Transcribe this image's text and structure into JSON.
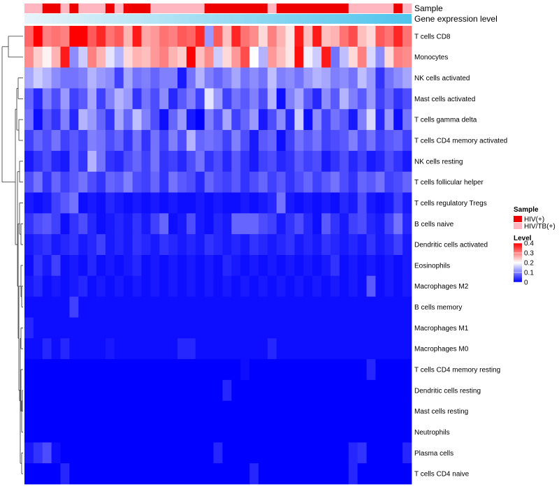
{
  "chart_data": {
    "type": "heatmap",
    "title": "",
    "annotation_rows": [
      "Sample",
      "Gene expression level"
    ],
    "row_labels": [
      "T cells CD8",
      "Monocytes",
      "NK cells activated",
      "Mast cells activated",
      "T cells gamma delta",
      "T cells CD4 memory activated",
      "NK cells resting",
      "T cells follicular helper",
      "T cells regulatory  Tregs",
      "B cells naive",
      "Dendritic cells activated",
      "Eosinophils",
      "Macrophages M2",
      "B cells memory",
      "Macrophages M1",
      "Macrophages M0",
      "T cells CD4 memory resting",
      "Dendritic cells resting",
      "Mast cells resting",
      "Neutrophils",
      "Plasma cells",
      "T cells CD4 naive"
    ],
    "sample_groups": [
      "HIV/TB(+)",
      "HIV/TB(+)",
      "HIV(+)",
      "HIV(+)",
      "HIV/TB(+)",
      "HIV(+)",
      "HIV/TB(+)",
      "HIV/TB(+)",
      "HIV/TB(+)",
      "HIV(+)",
      "HIV/TB(+)",
      "HIV(+)",
      "HIV(+)",
      "HIV(+)",
      "HIV/TB(+)",
      "HIV/TB(+)",
      "HIV/TB(+)",
      "HIV/TB(+)",
      "HIV/TB(+)",
      "HIV/TB(+)",
      "HIV(+)",
      "HIV(+)",
      "HIV(+)",
      "HIV(+)",
      "HIV(+)",
      "HIV(+)",
      "HIV(+)",
      "HIV/TB(+)",
      "HIV(+)",
      "HIV(+)",
      "HIV(+)",
      "HIV(+)",
      "HIV(+)",
      "HIV(+)",
      "HIV(+)",
      "HIV(+)",
      "HIV/TB(+)",
      "HIV/TB(+)",
      "HIV/TB(+)",
      "HIV/TB(+)",
      "HIV/TB(+)",
      "HIV(+)",
      "HIV/TB(+)"
    ],
    "expression_gradient": {
      "low": "#e8f4fa",
      "high": "#4fc4ec"
    },
    "legend": {
      "position": "right",
      "sample_title": "Sample",
      "sample_entries": [
        {
          "label": "HIV(+)",
          "color": "#ee0000"
        },
        {
          "label": "HIV/TB(+)",
          "color": "#ffb6c1"
        }
      ],
      "level_title": "Level",
      "level_ticks": [
        "0.4",
        "0.3",
        "0.2",
        "0.1",
        "0"
      ],
      "color_scale": {
        "min": 0,
        "mid": 0.2,
        "max": 0.4,
        "low": "#0000ff",
        "midColor": "#ffffff",
        "high": "#ff0000"
      }
    },
    "values": [
      [
        0.32,
        0.4,
        0.3,
        0.31,
        0.3,
        0.4,
        0.4,
        0.33,
        0.37,
        0.31,
        0.33,
        0.26,
        0.38,
        0.27,
        0.28,
        0.31,
        0.3,
        0.33,
        0.32,
        0.37,
        0.12,
        0.33,
        0.25,
        0.37,
        0.31,
        0.29,
        0.23,
        0.3,
        0.26,
        0.22,
        0.38,
        0.25,
        0.38,
        0.25,
        0.26,
        0.31,
        0.34,
        0.25,
        0.23,
        0.33,
        0.31,
        0.37,
        0.31
      ],
      [
        0.29,
        0.24,
        0.21,
        0.26,
        0.38,
        0.11,
        0.16,
        0.3,
        0.26,
        0.18,
        0.14,
        0.23,
        0.26,
        0.25,
        0.28,
        0.3,
        0.26,
        0.24,
        0.4,
        0.25,
        0.29,
        0.16,
        0.23,
        0.28,
        0.34,
        0.2,
        0.14,
        0.28,
        0.25,
        0.22,
        0.39,
        0.19,
        0.16,
        0.38,
        0.09,
        0.15,
        0.23,
        0.3,
        0.17,
        0.11,
        0.23,
        0.3,
        0.29
      ],
      [
        0.13,
        0.16,
        0.14,
        0.11,
        0.09,
        0.09,
        0.1,
        0.14,
        0.12,
        0.11,
        0.05,
        0.13,
        0.09,
        0.1,
        0.08,
        0.1,
        0.1,
        0.02,
        0.09,
        0.14,
        0.1,
        0.08,
        0.1,
        0.13,
        0.09,
        0.11,
        0.09,
        0.15,
        0.1,
        0.11,
        0.09,
        0.12,
        0.14,
        0.13,
        0.1,
        0.11,
        0.09,
        0.15,
        0.12,
        0.04,
        0.09,
        0.11,
        0.13
      ],
      [
        0.08,
        0.03,
        0.1,
        0.06,
        0.12,
        0.05,
        0.07,
        0.13,
        0.05,
        0.1,
        0.14,
        0.12,
        0.04,
        0.09,
        0.06,
        0.11,
        0.03,
        0.07,
        0.1,
        0.05,
        0.18,
        0.12,
        0.05,
        0.09,
        0.07,
        0.1,
        0.06,
        0.14,
        0.01,
        0.1,
        0.13,
        0.07,
        0.03,
        0.11,
        0.07,
        0.14,
        0.1,
        0.07,
        0.12,
        0.05,
        0.08,
        0.04,
        0.06
      ],
      [
        0.09,
        0.01,
        0.07,
        0.04,
        0.1,
        0.03,
        0.14,
        0.12,
        0.08,
        0.04,
        0.13,
        0.08,
        0.15,
        0.1,
        0.06,
        0.01,
        0.08,
        0.12,
        0.02,
        0.0,
        0.1,
        0.06,
        0.13,
        0.05,
        0.08,
        0.12,
        0.02,
        0.06,
        0.11,
        0.03,
        0.16,
        0.01,
        0.11,
        0.05,
        0.09,
        0.07,
        0.02,
        0.1,
        0.17,
        0.03,
        0.12,
        0.01,
        0.09
      ],
      [
        0.05,
        0.08,
        0.06,
        0.09,
        0.05,
        0.07,
        0.05,
        0.1,
        0.09,
        0.06,
        0.08,
        0.04,
        0.09,
        0.04,
        0.09,
        0.05,
        0.1,
        0.06,
        0.14,
        0.08,
        0.09,
        0.08,
        0.05,
        0.1,
        0.06,
        0.02,
        0.07,
        0.08,
        0.01,
        0.05,
        0.09,
        0.07,
        0.09,
        0.05,
        0.06,
        0.07,
        0.1,
        0.06,
        0.09,
        0.05,
        0.07,
        0.08,
        0.05
      ],
      [
        0.02,
        0.04,
        0.06,
        0.03,
        0.02,
        0.07,
        0.04,
        0.14,
        0.09,
        0.04,
        0.03,
        0.06,
        0.08,
        0.05,
        0.09,
        0.04,
        0.05,
        0.03,
        0.06,
        0.09,
        0.04,
        0.06,
        0.03,
        0.07,
        0.04,
        0.02,
        0.05,
        0.06,
        0.03,
        0.04,
        0.07,
        0.05,
        0.06,
        0.02,
        0.04,
        0.06,
        0.03,
        0.05,
        0.02,
        0.03,
        0.06,
        0.04,
        0.02
      ],
      [
        0.06,
        0.09,
        0.04,
        0.08,
        0.05,
        0.07,
        0.09,
        0.06,
        0.04,
        0.08,
        0.07,
        0.1,
        0.06,
        0.05,
        0.08,
        0.04,
        0.09,
        0.07,
        0.06,
        0.03,
        0.08,
        0.06,
        0.05,
        0.07,
        0.04,
        0.06,
        0.08,
        0.05,
        0.07,
        0.04,
        0.06,
        0.08,
        0.05,
        0.07,
        0.09,
        0.06,
        0.04,
        0.08,
        0.07,
        0.09,
        0.05,
        0.06,
        0.08
      ],
      [
        0.02,
        0.01,
        0.02,
        0.05,
        0.07,
        0.09,
        0.01,
        0.02,
        0.01,
        0.03,
        0.02,
        0.01,
        0.02,
        0.01,
        0.02,
        0.01,
        0.02,
        0.01,
        0.01,
        0.02,
        0.01,
        0.02,
        0.01,
        0.01,
        0.02,
        0.01,
        0.02,
        0.03,
        0.09,
        0.02,
        0.01,
        0.02,
        0.01,
        0.02,
        0.01,
        0.03,
        0.02,
        0.06,
        0.02,
        0.01,
        0.02,
        0.05,
        0.02
      ],
      [
        0.04,
        0.06,
        0.07,
        0.05,
        0.01,
        0.04,
        0.06,
        0.03,
        0.01,
        0.02,
        0.03,
        0.02,
        0.04,
        0.02,
        0.05,
        0.08,
        0.01,
        0.02,
        0.06,
        0.02,
        0.01,
        0.03,
        0.02,
        0.08,
        0.08,
        0.08,
        0.06,
        0.05,
        0.02,
        0.04,
        0.06,
        0.03,
        0.01,
        0.07,
        0.04,
        0.02,
        0.05,
        0.06,
        0.03,
        0.02,
        0.05,
        0.09,
        0.03
      ],
      [
        0.02,
        0.03,
        0.04,
        0.02,
        0.03,
        0.04,
        0.02,
        0.03,
        0.05,
        0.02,
        0.03,
        0.02,
        0.04,
        0.03,
        0.02,
        0.04,
        0.03,
        0.02,
        0.03,
        0.02,
        0.04,
        0.03,
        0.02,
        0.03,
        0.02,
        0.04,
        0.03,
        0.02,
        0.03,
        0.04,
        0.02,
        0.03,
        0.02,
        0.04,
        0.03,
        0.02,
        0.03,
        0.02,
        0.04,
        0.02,
        0.03,
        0.05,
        0.02
      ],
      [
        0.01,
        0.04,
        0.02,
        0.05,
        0.01,
        0.02,
        0.01,
        0.03,
        0.01,
        0.02,
        0.01,
        0.02,
        0.03,
        0.01,
        0.02,
        0.01,
        0.02,
        0.01,
        0.02,
        0.01,
        0.02,
        0.01,
        0.03,
        0.02,
        0.01,
        0.02,
        0.01,
        0.02,
        0.01,
        0.02,
        0.01,
        0.02,
        0.01,
        0.02,
        0.04,
        0.01,
        0.02,
        0.01,
        0.02,
        0.01,
        0.02,
        0.01,
        0.02
      ],
      [
        0.02,
        0.03,
        0.01,
        0.02,
        0.01,
        0.02,
        0.03,
        0.01,
        0.02,
        0.01,
        0.02,
        0.01,
        0.02,
        0.01,
        0.02,
        0.01,
        0.02,
        0.01,
        0.02,
        0.01,
        0.02,
        0.01,
        0.02,
        0.01,
        0.02,
        0.01,
        0.02,
        0.01,
        0.02,
        0.01,
        0.02,
        0.01,
        0.02,
        0.01,
        0.02,
        0.01,
        0.02,
        0.01,
        0.07,
        0.01,
        0.02,
        0.01,
        0.02
      ],
      [
        0.01,
        0.01,
        0.01,
        0.01,
        0.01,
        0.05,
        0.01,
        0.01,
        0.01,
        0.01,
        0.01,
        0.01,
        0.01,
        0.01,
        0.01,
        0.01,
        0.01,
        0.01,
        0.01,
        0.01,
        0.01,
        0.01,
        0.01,
        0.01,
        0.01,
        0.01,
        0.01,
        0.01,
        0.01,
        0.01,
        0.01,
        0.01,
        0.01,
        0.01,
        0.01,
        0.01,
        0.01,
        0.01,
        0.01,
        0.01,
        0.01,
        0.01,
        0.01
      ],
      [
        0.03,
        0.01,
        0.01,
        0.01,
        0.01,
        0.01,
        0.01,
        0.01,
        0.01,
        0.01,
        0.01,
        0.01,
        0.01,
        0.01,
        0.01,
        0.01,
        0.01,
        0.01,
        0.01,
        0.01,
        0.01,
        0.01,
        0.01,
        0.01,
        0.01,
        0.01,
        0.01,
        0.01,
        0.01,
        0.01,
        0.01,
        0.01,
        0.01,
        0.01,
        0.01,
        0.01,
        0.01,
        0.01,
        0.01,
        0.01,
        0.01,
        0.01,
        0.01
      ],
      [
        0.01,
        0.01,
        0.03,
        0.01,
        0.03,
        0.01,
        0.01,
        0.01,
        0.01,
        0.02,
        0.01,
        0.01,
        0.01,
        0.01,
        0.01,
        0.01,
        0.01,
        0.03,
        0.03,
        0.01,
        0.01,
        0.01,
        0.01,
        0.01,
        0.01,
        0.01,
        0.01,
        0.03,
        0.01,
        0.01,
        0.01,
        0.01,
        0.01,
        0.01,
        0.01,
        0.01,
        0.01,
        0.01,
        0.01,
        0.01,
        0.01,
        0.01,
        0.01
      ],
      [
        0.0,
        0.0,
        0.0,
        0.0,
        0.0,
        0.0,
        0.0,
        0.0,
        0.0,
        0.0,
        0.0,
        0.0,
        0.0,
        0.0,
        0.0,
        0.0,
        0.0,
        0.0,
        0.0,
        0.0,
        0.0,
        0.0,
        0.0,
        0.0,
        0.01,
        0.0,
        0.0,
        0.0,
        0.0,
        0.0,
        0.0,
        0.0,
        0.0,
        0.0,
        0.0,
        0.0,
        0.0,
        0.0,
        0.03,
        0.0,
        0.0,
        0.0,
        0.0
      ],
      [
        0.0,
        0.0,
        0.0,
        0.0,
        0.0,
        0.0,
        0.0,
        0.0,
        0.0,
        0.0,
        0.0,
        0.0,
        0.0,
        0.0,
        0.0,
        0.0,
        0.0,
        0.0,
        0.0,
        0.0,
        0.0,
        0.0,
        0.03,
        0.0,
        0.0,
        0.0,
        0.0,
        0.0,
        0.0,
        0.0,
        0.0,
        0.0,
        0.0,
        0.0,
        0.0,
        0.0,
        0.0,
        0.0,
        0.0,
        0.0,
        0.0,
        0.0,
        0.0
      ],
      [
        0.0,
        0.0,
        0.0,
        0.0,
        0.0,
        0.0,
        0.0,
        0.0,
        0.0,
        0.0,
        0.0,
        0.0,
        0.0,
        0.0,
        0.0,
        0.0,
        0.0,
        0.0,
        0.0,
        0.0,
        0.0,
        0.0,
        0.0,
        0.0,
        0.0,
        0.0,
        0.0,
        0.0,
        0.0,
        0.0,
        0.0,
        0.0,
        0.0,
        0.0,
        0.0,
        0.0,
        0.0,
        0.0,
        0.0,
        0.0,
        0.0,
        0.0,
        0.0
      ],
      [
        0.0,
        0.0,
        0.0,
        0.0,
        0.0,
        0.0,
        0.0,
        0.0,
        0.0,
        0.0,
        0.0,
        0.0,
        0.0,
        0.0,
        0.0,
        0.0,
        0.0,
        0.0,
        0.0,
        0.0,
        0.0,
        0.0,
        0.0,
        0.0,
        0.0,
        0.0,
        0.0,
        0.0,
        0.0,
        0.0,
        0.0,
        0.0,
        0.0,
        0.0,
        0.0,
        0.0,
        0.0,
        0.0,
        0.0,
        0.0,
        0.0,
        0.0,
        0.0
      ],
      [
        0.02,
        0.04,
        0.06,
        0.01,
        0.0,
        0.0,
        0.0,
        0.0,
        0.0,
        0.0,
        0.0,
        0.0,
        0.0,
        0.0,
        0.0,
        0.0,
        0.0,
        0.0,
        0.0,
        0.0,
        0.0,
        0.03,
        0.0,
        0.0,
        0.0,
        0.0,
        0.0,
        0.0,
        0.0,
        0.0,
        0.0,
        0.0,
        0.0,
        0.0,
        0.0,
        0.0,
        0.03,
        0.04,
        0.0,
        0.0,
        0.0,
        0.0,
        0.03
      ],
      [
        0.0,
        0.0,
        0.0,
        0.0,
        0.03,
        0.0,
        0.0,
        0.0,
        0.0,
        0.0,
        0.0,
        0.0,
        0.0,
        0.0,
        0.0,
        0.0,
        0.0,
        0.0,
        0.0,
        0.0,
        0.0,
        0.0,
        0.0,
        0.0,
        0.0,
        0.03,
        0.0,
        0.0,
        0.0,
        0.0,
        0.0,
        0.0,
        0.0,
        0.0,
        0.0,
        0.0,
        0.03,
        0.0,
        0.0,
        0.0,
        0.0,
        0.0,
        0.0
      ]
    ]
  }
}
